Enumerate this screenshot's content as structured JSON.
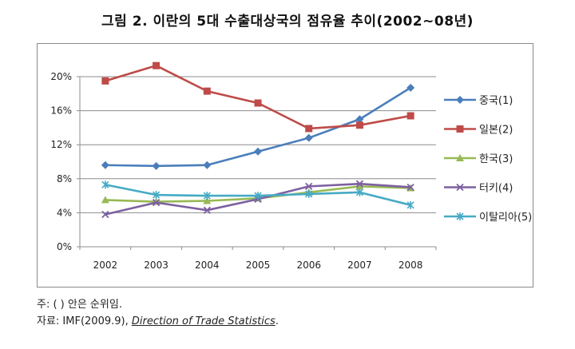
{
  "title": "그림 2. 이란의 5대 수출대상국의 점유율 추이(2002~08년)",
  "notes": {
    "note1": "주: (  ) 안은 순위임.",
    "note2_prefix": "자료: IMF(2009.9),",
    "note2_source": "Direction of Trade Statistics",
    "note2_suffix": "."
  },
  "chart_data": {
    "type": "line",
    "x": [
      "2002",
      "2003",
      "2004",
      "2005",
      "2006",
      "2007",
      "2008"
    ],
    "ylim": [
      0,
      20
    ],
    "yticks": [
      0,
      4,
      8,
      12,
      16,
      20
    ],
    "ytick_labels": [
      "0%",
      "4%",
      "8%",
      "12%",
      "16%",
      "20%"
    ],
    "grid": "horizontal",
    "legend": "right",
    "series": [
      {
        "name": "중국(1)",
        "color": "#4A7EBB",
        "marker": "diamond",
        "values": [
          9.6,
          9.5,
          9.6,
          11.2,
          12.8,
          15.0,
          18.7
        ]
      },
      {
        "name": "일본(2)",
        "color": "#BE4B48",
        "marker": "square",
        "values": [
          19.5,
          21.3,
          18.3,
          16.9,
          13.9,
          14.3,
          15.4
        ]
      },
      {
        "name": "한국(3)",
        "color": "#98B954",
        "marker": "triangle",
        "values": [
          5.5,
          5.3,
          5.4,
          5.7,
          6.4,
          7.1,
          6.9
        ]
      },
      {
        "name": "터키(4)",
        "color": "#7D60A0",
        "marker": "x",
        "values": [
          3.8,
          5.2,
          4.3,
          5.6,
          7.1,
          7.4,
          7.0
        ]
      },
      {
        "name": "이탈리아(5)",
        "color": "#46AAC5",
        "marker": "star",
        "values": [
          7.3,
          6.1,
          6.0,
          6.0,
          6.2,
          6.4,
          4.9
        ]
      }
    ]
  }
}
